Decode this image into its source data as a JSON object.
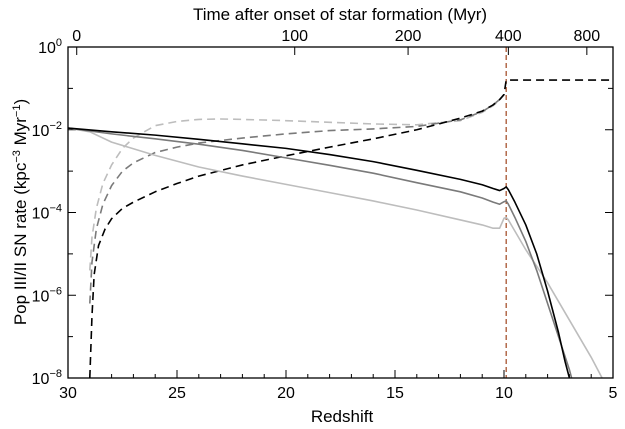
{
  "chart_data": {
    "type": "line",
    "title": "",
    "xlabel": "Redshift",
    "ylabel_main": "Pop III/II SN rate (kpc",
    "ylabel_unit_mid": " Myr",
    "ylabel_sup1": "−3",
    "ylabel_sup2": "−1",
    "ylabel_close": ")",
    "top_xlabel": "Time after onset of star formation (Myr)",
    "xlim": [
      30,
      5
    ],
    "ylim_log10": [
      -8,
      0
    ],
    "x_ticks": [
      30,
      25,
      20,
      15,
      10,
      5
    ],
    "x_tick_labels": [
      "30",
      "25",
      "20",
      "15",
      "10",
      "5"
    ],
    "y_tick_exponents": [
      0,
      -2,
      -4,
      -6,
      -8
    ],
    "y_tick_base": "10",
    "y_tick_exp_labels": [
      "0",
      "−2",
      "−4",
      "−6",
      "−8"
    ],
    "top_ticks_redshift": [
      29.6,
      19.6,
      14.4,
      9.8,
      6.2
    ],
    "top_tick_labels": [
      "0",
      "100",
      "200",
      "400",
      "800"
    ],
    "vline_redshift": 9.9,
    "colors": {
      "black": "#000000",
      "gray": "#7a7a7a",
      "light": "#bdbdbd",
      "vline": "#a0461e"
    },
    "series": [
      {
        "name": "Pop III rate (black)",
        "style": "solid",
        "color": "black",
        "z": [
          30,
          28,
          26,
          24,
          22,
          20,
          18,
          16,
          14,
          12,
          11,
          10.5,
          10.2,
          10.0,
          9.9,
          9.8,
          9.5,
          9.0,
          8.5,
          8.0,
          7.5,
          7.2,
          7.0
        ],
        "log10_rate": [
          -1.96,
          -2.05,
          -2.13,
          -2.23,
          -2.34,
          -2.45,
          -2.6,
          -2.77,
          -2.98,
          -3.2,
          -3.33,
          -3.42,
          -3.47,
          -3.42,
          -3.38,
          -3.45,
          -3.75,
          -4.3,
          -5.0,
          -5.9,
          -6.9,
          -7.6,
          -8.0
        ]
      },
      {
        "name": "Pop III rate (gray)",
        "style": "solid",
        "color": "gray",
        "z": [
          30,
          28,
          26,
          24,
          22,
          20,
          18,
          16,
          14,
          12,
          11,
          10.5,
          10.2,
          10.0,
          9.9,
          9.8,
          9.5,
          9.0,
          8.5,
          8.0,
          7.5,
          7.0,
          6.9
        ],
        "log10_rate": [
          -1.96,
          -2.1,
          -2.22,
          -2.35,
          -2.5,
          -2.68,
          -2.86,
          -3.05,
          -3.28,
          -3.5,
          -3.65,
          -3.75,
          -3.8,
          -3.74,
          -3.72,
          -3.8,
          -4.12,
          -4.7,
          -5.4,
          -6.2,
          -7.0,
          -7.8,
          -8.0
        ]
      },
      {
        "name": "Pop III rate (light)",
        "style": "solid",
        "color": "light",
        "z": [
          30,
          29,
          28,
          26,
          24,
          22,
          20,
          18,
          16,
          14,
          12,
          11,
          10.5,
          10.2,
          10.0,
          9.9,
          9.8,
          9.5,
          9.0,
          8.0,
          7.0,
          6.0,
          5.5
        ],
        "log10_rate": [
          -1.96,
          -2.05,
          -2.3,
          -2.62,
          -2.9,
          -3.12,
          -3.32,
          -3.52,
          -3.72,
          -3.94,
          -4.18,
          -4.3,
          -4.38,
          -4.38,
          -4.14,
          -4.12,
          -4.18,
          -4.45,
          -4.9,
          -5.7,
          -6.6,
          -7.5,
          -8.0
        ]
      },
      {
        "name": "Pop II rate (black dashed)",
        "style": "dashed",
        "color": "black",
        "z": [
          29.0,
          28.9,
          28.8,
          28.6,
          28.3,
          28.0,
          27.5,
          27.0,
          26,
          25,
          24,
          22,
          20,
          18,
          16,
          14,
          13,
          12,
          11,
          10.5,
          10.2,
          10.0,
          9.9,
          9.5,
          9.0,
          8.0,
          7.0,
          5.0
        ],
        "log10_rate": [
          -8.0,
          -6.5,
          -5.5,
          -4.8,
          -4.4,
          -4.15,
          -3.9,
          -3.75,
          -3.5,
          -3.3,
          -3.12,
          -2.85,
          -2.63,
          -2.42,
          -2.22,
          -2.0,
          -1.86,
          -1.72,
          -1.55,
          -1.4,
          -1.27,
          -1.15,
          -0.8,
          -0.8,
          -0.8,
          -0.8,
          -0.8,
          -0.8
        ]
      },
      {
        "name": "Pop II rate (gray dashed)",
        "style": "dashed",
        "color": "gray",
        "z": [
          29.0,
          28.9,
          28.7,
          28.4,
          28.0,
          27.5,
          27.0,
          26,
          25,
          24,
          22,
          20,
          18,
          16,
          14,
          12,
          11,
          10.5,
          10.2,
          10.0
        ],
        "log10_rate": [
          -6.2,
          -5.2,
          -4.4,
          -3.8,
          -3.35,
          -3.0,
          -2.8,
          -2.55,
          -2.42,
          -2.32,
          -2.2,
          -2.1,
          -2.02,
          -1.98,
          -1.92,
          -1.76,
          -1.56,
          -1.4,
          -1.27,
          -1.15
        ]
      },
      {
        "name": "Pop II rate (light dashed)",
        "style": "dashed",
        "color": "light",
        "z": [
          29.0,
          28.9,
          28.7,
          28.4,
          28.0,
          27.5,
          27.0,
          26,
          25,
          24,
          23,
          22,
          20,
          18,
          16,
          14,
          12,
          11,
          10.5,
          10.2,
          10.0
        ],
        "log10_rate": [
          -5.4,
          -4.6,
          -3.9,
          -3.3,
          -2.85,
          -2.45,
          -2.2,
          -1.9,
          -1.8,
          -1.75,
          -1.74,
          -1.75,
          -1.78,
          -1.82,
          -1.86,
          -1.88,
          -1.78,
          -1.58,
          -1.42,
          -1.28,
          -1.15
        ]
      }
    ]
  }
}
